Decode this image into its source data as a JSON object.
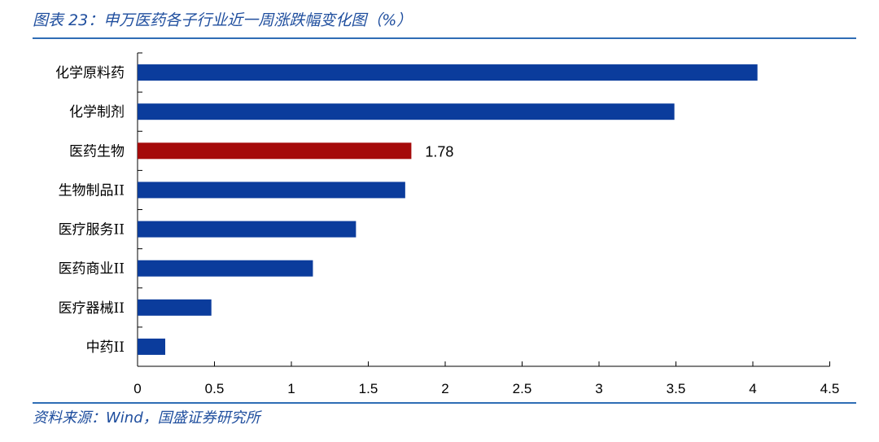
{
  "header": {
    "title": "图表 23：申万医药各子行业近一周涨跌幅变化图（%）"
  },
  "footer": {
    "source": "资料来源：Wind，国盛证券研究所"
  },
  "chart_data": {
    "type": "bar",
    "orientation": "horizontal",
    "categories": [
      "化学原料药",
      "化学制剂",
      "医药生物",
      "生物制品II",
      "医疗服务II",
      "医药商业II",
      "医疗器械II",
      "中药II"
    ],
    "values": [
      4.03,
      3.49,
      1.78,
      1.74,
      1.42,
      1.14,
      0.48,
      0.18
    ],
    "highlight_index": 2,
    "data_labels": {
      "2": "1.78"
    },
    "xlim": [
      0,
      4.5
    ],
    "xticks": [
      0,
      0.5,
      1,
      1.5,
      2,
      2.5,
      3,
      3.5,
      4,
      4.5
    ],
    "xtick_labels": [
      "0",
      "0.5",
      "1",
      "1.5",
      "2",
      "2.5",
      "3",
      "3.5",
      "4",
      "4.5"
    ],
    "colors": {
      "bar": "#0B3C9C",
      "highlight": "#A50A0A",
      "axis": "#000000"
    },
    "grid": false,
    "legend": "none"
  }
}
